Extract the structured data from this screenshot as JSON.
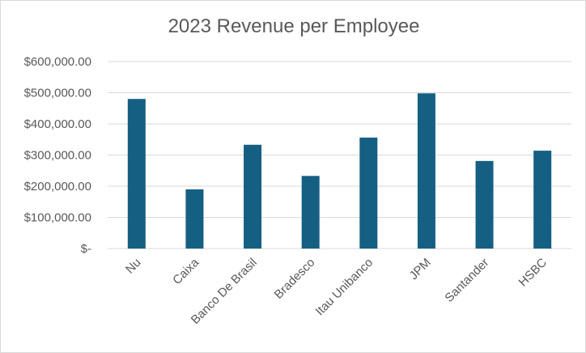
{
  "chart_data": {
    "type": "bar",
    "title": "2023 Revenue per Employee",
    "xlabel": "",
    "ylabel": "",
    "categories": [
      "Nu",
      "Caixa",
      "Banco De Brasil",
      "Bradesco",
      "Itau Unibanco",
      "JPM",
      "Santander",
      "HSBC"
    ],
    "series": [
      {
        "values": [
          480000,
          190000,
          333000,
          233000,
          356000,
          498000,
          281000,
          314000
        ]
      }
    ],
    "ylim": [
      0,
      600000
    ],
    "y_ticks": [
      0,
      100000,
      200000,
      300000,
      400000,
      500000,
      600000
    ],
    "y_tick_labels": [
      "$-",
      "$100,000.00",
      "$200,000.00",
      "$300,000.00",
      "$400,000.00",
      "$500,000.00",
      "$600,000.00"
    ],
    "grid": true,
    "legend": "none",
    "colors": {
      "bar": "#155f82"
    }
  }
}
